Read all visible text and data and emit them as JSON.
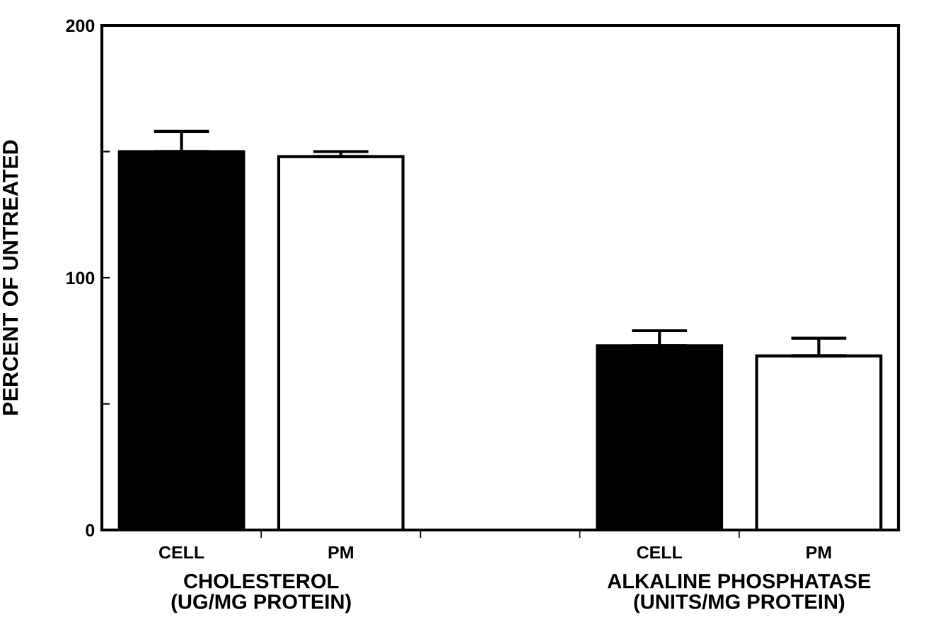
{
  "chart_data": {
    "type": "bar",
    "ylabel": "PERCENT OF UNTREATED",
    "categories": [
      "CELL",
      "PM",
      null,
      "CELL",
      "PM"
    ],
    "values": [
      150,
      148,
      null,
      73,
      69
    ],
    "errors": [
      8,
      2,
      null,
      6,
      7
    ],
    "colors": [
      "#000000",
      "#ffffff",
      null,
      "#000000",
      "#ffffff"
    ],
    "ylim": [
      0,
      200
    ],
    "yticks": [
      0,
      {
        "value": 50,
        "label": null
      },
      100,
      {
        "value": 150,
        "label": null
      },
      200
    ],
    "annotations": [
      "CHOLESTEROL\n(UG/MG PROTEIN)",
      "ALKALINE PHOSPHATASE\n(UNITS/MG PROTEIN)"
    ],
    "grid": false,
    "legend": false
  }
}
